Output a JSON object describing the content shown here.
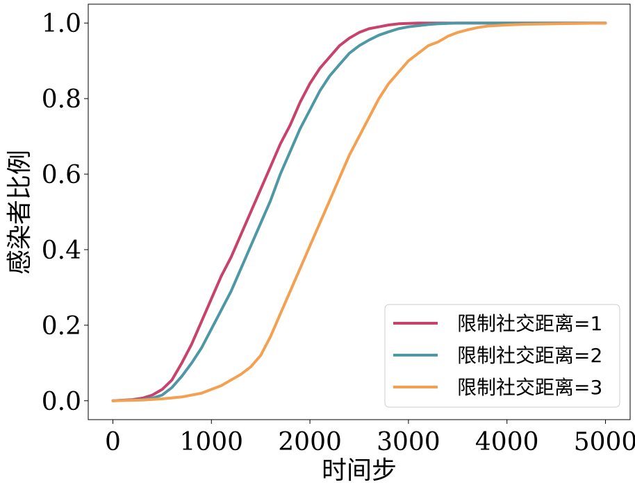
{
  "chart_data": {
    "type": "line",
    "xlabel": "时间步",
    "ylabel": "感染者比例",
    "xlim": [
      -250,
      5250
    ],
    "ylim": [
      -0.05,
      1.05
    ],
    "xticks": [
      0,
      1000,
      2000,
      3000,
      4000,
      5000
    ],
    "xtick_labels": [
      "0",
      "1000",
      "2000",
      "3000",
      "4000",
      "5000"
    ],
    "yticks": [
      0.0,
      0.2,
      0.4,
      0.6,
      0.8,
      1.0
    ],
    "ytick_labels": [
      "0.0",
      "0.2",
      "0.4",
      "0.6",
      "0.8",
      "1.0"
    ],
    "grid": false,
    "legend_position": "bottom-right",
    "series": [
      {
        "name": "限制社交距离=1",
        "color": "#c8426b",
        "x": [
          0,
          200,
          300,
          400,
          500,
          600,
          700,
          800,
          900,
          1000,
          1100,
          1200,
          1300,
          1400,
          1500,
          1600,
          1700,
          1800,
          1900,
          2000,
          2100,
          2200,
          2300,
          2400,
          2500,
          2600,
          2700,
          2800,
          2900,
          3000,
          3100,
          3200,
          3400,
          3600,
          4000,
          4500,
          5000
        ],
        "y": [
          0.0,
          0.003,
          0.007,
          0.015,
          0.03,
          0.055,
          0.1,
          0.15,
          0.21,
          0.27,
          0.33,
          0.38,
          0.44,
          0.5,
          0.56,
          0.62,
          0.68,
          0.73,
          0.79,
          0.84,
          0.88,
          0.91,
          0.94,
          0.96,
          0.975,
          0.985,
          0.99,
          0.995,
          0.998,
          0.999,
          1.0,
          1.0,
          1.0,
          1.0,
          1.0,
          1.0,
          1.0
        ]
      },
      {
        "name": "限制社交距离=2",
        "color": "#4e98a6",
        "x": [
          0,
          300,
          400,
          500,
          600,
          700,
          800,
          900,
          1000,
          1100,
          1200,
          1300,
          1400,
          1500,
          1600,
          1700,
          1800,
          1900,
          2000,
          2100,
          2200,
          2300,
          2400,
          2500,
          2600,
          2700,
          2800,
          2900,
          3000,
          3100,
          3200,
          3300,
          3400,
          3500,
          3600,
          4000,
          4500,
          5000
        ],
        "y": [
          0.0,
          0.003,
          0.007,
          0.015,
          0.035,
          0.065,
          0.1,
          0.14,
          0.19,
          0.24,
          0.29,
          0.35,
          0.41,
          0.47,
          0.53,
          0.6,
          0.66,
          0.72,
          0.77,
          0.82,
          0.86,
          0.89,
          0.92,
          0.94,
          0.955,
          0.968,
          0.977,
          0.985,
          0.99,
          0.993,
          0.996,
          0.998,
          0.999,
          1.0,
          1.0,
          1.0,
          1.0,
          1.0
        ]
      },
      {
        "name": "限制社交距离=3",
        "color": "#f4a051",
        "x": [
          0,
          300,
          500,
          700,
          900,
          1000,
          1100,
          1200,
          1300,
          1400,
          1500,
          1600,
          1700,
          1800,
          1900,
          2000,
          2100,
          2200,
          2300,
          2400,
          2500,
          2600,
          2700,
          2800,
          2900,
          3000,
          3100,
          3200,
          3300,
          3400,
          3500,
          3600,
          3700,
          3800,
          4000,
          4200,
          4500,
          5000
        ],
        "y": [
          0.0,
          0.002,
          0.005,
          0.01,
          0.02,
          0.03,
          0.04,
          0.055,
          0.07,
          0.09,
          0.12,
          0.17,
          0.23,
          0.29,
          0.35,
          0.41,
          0.47,
          0.53,
          0.59,
          0.65,
          0.7,
          0.75,
          0.8,
          0.84,
          0.87,
          0.9,
          0.92,
          0.94,
          0.95,
          0.965,
          0.975,
          0.982,
          0.988,
          0.992,
          0.995,
          0.997,
          0.998,
          1.0
        ]
      }
    ]
  }
}
